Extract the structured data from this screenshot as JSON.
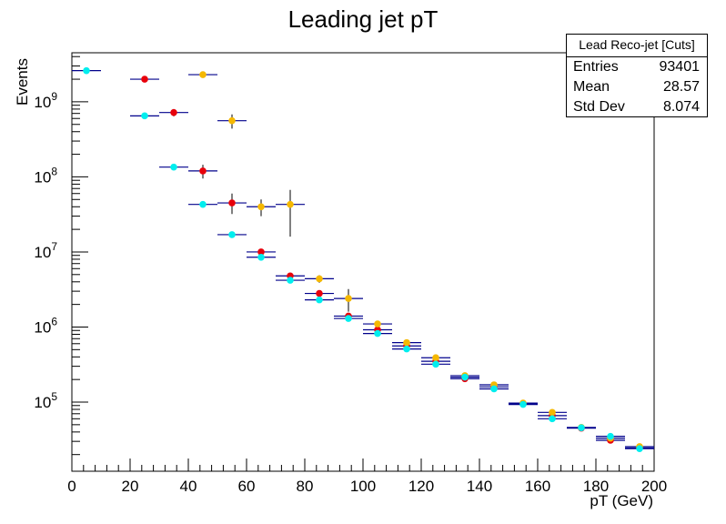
{
  "chart_data": {
    "type": "scatter",
    "title": "Leading jet pT",
    "xlabel": "pT (GeV)",
    "ylabel": "Events",
    "xlim": [
      0,
      200
    ],
    "ylim": [
      12000,
      4500000000
    ],
    "yscale": "log",
    "grid": false,
    "x_ticks": [
      "0",
      "20",
      "40",
      "60",
      "80",
      "100",
      "120",
      "140",
      "160",
      "180",
      "200"
    ],
    "y_ticks": [
      {
        "base": "10",
        "exp": "5",
        "value": 100000
      },
      {
        "base": "10",
        "exp": "6",
        "value": 1000000
      },
      {
        "base": "10",
        "exp": "7",
        "value": 10000000
      },
      {
        "base": "10",
        "exp": "8",
        "value": 100000000
      },
      {
        "base": "10",
        "exp": "9",
        "value": 1000000000
      }
    ],
    "series": [
      {
        "color": "#e8000b",
        "points": [
          {
            "x": 25,
            "y": 2000000000,
            "ylo": 1950000000,
            "yhi": 2050000000
          },
          {
            "x": 35,
            "y": 720000000,
            "ylo": 640000000,
            "yhi": 800000000
          },
          {
            "x": 45,
            "y": 120000000,
            "ylo": 95000000,
            "yhi": 145000000
          },
          {
            "x": 55,
            "y": 45000000,
            "ylo": 32000000,
            "yhi": 60000000
          },
          {
            "x": 65,
            "y": 10000000,
            "ylo": 9200000,
            "yhi": 10800000
          },
          {
            "x": 75,
            "y": 4800000,
            "ylo": 4500000,
            "yhi": 5100000
          },
          {
            "x": 85,
            "y": 2800000,
            "ylo": 2600000,
            "yhi": 3000000
          },
          {
            "x": 95,
            "y": 1400000,
            "ylo": 1300000,
            "yhi": 1500000
          },
          {
            "x": 105,
            "y": 920000,
            "ylo": 860000,
            "yhi": 980000
          },
          {
            "x": 115,
            "y": 560000,
            "ylo": 530000,
            "yhi": 590000
          },
          {
            "x": 125,
            "y": 350000,
            "ylo": 330000,
            "yhi": 370000
          },
          {
            "x": 135,
            "y": 205000,
            "ylo": 195000,
            "yhi": 215000
          },
          {
            "x": 145,
            "y": 160000,
            "ylo": 152000,
            "yhi": 168000
          },
          {
            "x": 155,
            "y": 95000,
            "ylo": 91000,
            "yhi": 99000
          },
          {
            "x": 165,
            "y": 66000,
            "ylo": 63000,
            "yhi": 69000
          },
          {
            "x": 175,
            "y": 45000,
            "ylo": 43500,
            "yhi": 46500
          },
          {
            "x": 185,
            "y": 31000,
            "ylo": 30000,
            "yhi": 32000
          },
          {
            "x": 195,
            "y": 24500,
            "ylo": 23700,
            "yhi": 25300
          }
        ]
      },
      {
        "color": "#f5b800",
        "points": [
          {
            "x": 45,
            "y": 2300000000,
            "ylo": 2200000000,
            "yhi": 2400000000
          },
          {
            "x": 55,
            "y": 560000000,
            "ylo": 440000000,
            "yhi": 680000000
          },
          {
            "x": 65,
            "y": 40000000,
            "ylo": 30000000,
            "yhi": 50000000
          },
          {
            "x": 75,
            "y": 43000000,
            "ylo": 16000000,
            "yhi": 67000000
          },
          {
            "x": 85,
            "y": 4400000,
            "ylo": 3900000,
            "yhi": 4900000
          },
          {
            "x": 95,
            "y": 2400000,
            "ylo": 1600000,
            "yhi": 3200000
          },
          {
            "x": 105,
            "y": 1100000,
            "ylo": 1030000,
            "yhi": 1170000
          },
          {
            "x": 115,
            "y": 620000,
            "ylo": 590000,
            "yhi": 650000
          },
          {
            "x": 125,
            "y": 390000,
            "ylo": 370000,
            "yhi": 410000
          },
          {
            "x": 135,
            "y": 225000,
            "ylo": 215000,
            "yhi": 235000
          },
          {
            "x": 145,
            "y": 170000,
            "ylo": 162000,
            "yhi": 178000
          },
          {
            "x": 155,
            "y": 97000,
            "ylo": 93000,
            "yhi": 101000
          },
          {
            "x": 165,
            "y": 73000,
            "ylo": 70000,
            "yhi": 76000
          },
          {
            "x": 175,
            "y": 46000,
            "ylo": 44500,
            "yhi": 47500
          },
          {
            "x": 185,
            "y": 33000,
            "ylo": 32000,
            "yhi": 34000
          },
          {
            "x": 195,
            "y": 25500,
            "ylo": 24700,
            "yhi": 26300
          }
        ]
      },
      {
        "color": "#00eeee",
        "points": [
          {
            "x": 5,
            "y": 2600000000,
            "ylo": 2550000000,
            "yhi": 2650000000
          },
          {
            "x": 25,
            "y": 650000000,
            "ylo": 630000000,
            "yhi": 670000000
          },
          {
            "x": 35,
            "y": 135000000,
            "ylo": 130000000,
            "yhi": 140000000
          },
          {
            "x": 45,
            "y": 43000000,
            "ylo": 41000000,
            "yhi": 45000000
          },
          {
            "x": 55,
            "y": 17000000,
            "ylo": 16000000,
            "yhi": 18000000
          },
          {
            "x": 65,
            "y": 8500000,
            "ylo": 8100000,
            "yhi": 8900000
          },
          {
            "x": 75,
            "y": 4200000,
            "ylo": 4000000,
            "yhi": 4400000
          },
          {
            "x": 85,
            "y": 2300000,
            "ylo": 2200000,
            "yhi": 2400000
          },
          {
            "x": 95,
            "y": 1300000,
            "ylo": 1240000,
            "yhi": 1360000
          },
          {
            "x": 105,
            "y": 820000,
            "ylo": 790000,
            "yhi": 850000
          },
          {
            "x": 115,
            "y": 510000,
            "ylo": 490000,
            "yhi": 530000
          },
          {
            "x": 125,
            "y": 320000,
            "ylo": 308000,
            "yhi": 332000
          },
          {
            "x": 135,
            "y": 215000,
            "ylo": 207000,
            "yhi": 223000
          },
          {
            "x": 145,
            "y": 150000,
            "ylo": 144000,
            "yhi": 156000
          },
          {
            "x": 155,
            "y": 93000,
            "ylo": 89500,
            "yhi": 96500
          },
          {
            "x": 165,
            "y": 60000,
            "ylo": 57500,
            "yhi": 62500
          },
          {
            "x": 175,
            "y": 45500,
            "ylo": 44000,
            "yhi": 47000
          },
          {
            "x": 185,
            "y": 35000,
            "ylo": 34000,
            "yhi": 36000
          },
          {
            "x": 195,
            "y": 24000,
            "ylo": 23200,
            "yhi": 24800
          }
        ]
      }
    ],
    "bin_half_width": 5,
    "xerr_color": "#00008b",
    "yerr_color": "#000000"
  },
  "stats_box": {
    "title": "Lead Reco-jet [Cuts]",
    "entries_label": "Entries",
    "entries_value": "93401",
    "mean_label": "Mean",
    "mean_value": "28.57",
    "stddev_label": "Std Dev",
    "stddev_value": "8.074"
  }
}
